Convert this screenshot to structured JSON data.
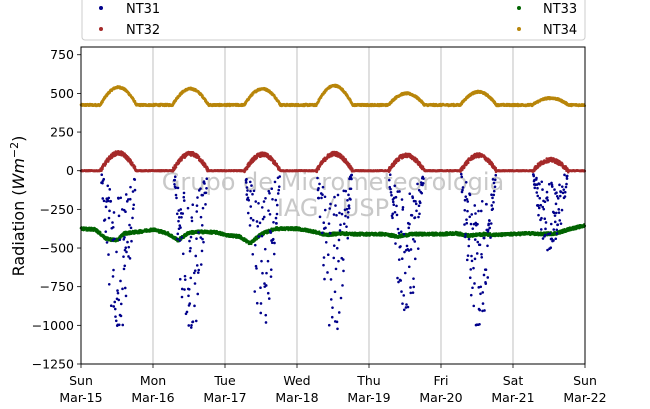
{
  "chart_data": {
    "type": "scatter",
    "ylabel": "Radiation (Wm⁻²)",
    "ylabel_parts": {
      "pre": "Radiation (",
      "var": "Wm",
      "sup": "−2",
      "post": ")"
    },
    "watermark": [
      "Grupo de Micrometeorologia",
      "IAG / USP"
    ],
    "x_days": 7,
    "x_ticks": [
      {
        "day": "Sun",
        "date": "Mar-15"
      },
      {
        "day": "Mon",
        "date": "Mar-16"
      },
      {
        "day": "Tue",
        "date": "Mar-17"
      },
      {
        "day": "Wed",
        "date": "Mar-18"
      },
      {
        "day": "Thu",
        "date": "Mar-19"
      },
      {
        "day": "Fri",
        "date": "Mar-20"
      },
      {
        "day": "Sat",
        "date": "Mar-21"
      },
      {
        "day": "Sun",
        "date": "Mar-22"
      }
    ],
    "ylim": [
      -1250,
      800
    ],
    "y_ticks": [
      750,
      500,
      250,
      0,
      -250,
      -500,
      -750,
      -1000,
      -1250
    ],
    "y_tick_labels": [
      "750",
      "500",
      "250",
      "0",
      "−250",
      "−500",
      "−750",
      "−1000",
      "−1250"
    ],
    "grid": "vertical",
    "legend_position": "top",
    "series": [
      {
        "name": "NT31",
        "color": "#00008b",
        "baseline": 0,
        "amp": [
          -1010,
          -1020,
          -990,
          -1030,
          -900,
          -1000,
          -520
        ],
        "noisy": true
      },
      {
        "name": "NT32",
        "color": "#a52a2a",
        "baseline": 0,
        "amp": [
          115,
          110,
          105,
          110,
          100,
          100,
          70
        ],
        "noisy": false
      },
      {
        "name": "NT33",
        "color": "#006400",
        "baseline": -400,
        "amp": [],
        "noisy": false
      },
      {
        "name": "NT34",
        "color": "#b8860b",
        "baseline": 425,
        "amp": [
          540,
          530,
          530,
          550,
          500,
          510,
          470
        ],
        "noisy": false
      }
    ],
    "nt33_profile": [
      [
        0.0,
        -375
      ],
      [
        0.2,
        -380
      ],
      [
        0.35,
        -440
      ],
      [
        0.5,
        -450
      ],
      [
        0.6,
        -405
      ],
      [
        0.8,
        -395
      ],
      [
        1.0,
        -380
      ],
      [
        1.2,
        -405
      ],
      [
        1.35,
        -450
      ],
      [
        1.5,
        -400
      ],
      [
        1.7,
        -395
      ],
      [
        1.9,
        -400
      ],
      [
        2.0,
        -415
      ],
      [
        2.2,
        -425
      ],
      [
        2.35,
        -470
      ],
      [
        2.5,
        -410
      ],
      [
        2.7,
        -375
      ],
      [
        3.0,
        -375
      ],
      [
        3.2,
        -390
      ],
      [
        3.4,
        -415
      ],
      [
        3.6,
        -405
      ],
      [
        3.8,
        -410
      ],
      [
        4.0,
        -410
      ],
      [
        4.2,
        -410
      ],
      [
        4.4,
        -425
      ],
      [
        4.6,
        -410
      ],
      [
        4.8,
        -410
      ],
      [
        5.0,
        -410
      ],
      [
        5.2,
        -405
      ],
      [
        5.4,
        -420
      ],
      [
        5.6,
        -410
      ],
      [
        5.8,
        -415
      ],
      [
        6.0,
        -410
      ],
      [
        6.2,
        -405
      ],
      [
        6.4,
        -410
      ],
      [
        6.6,
        -405
      ],
      [
        6.8,
        -375
      ],
      [
        7.0,
        -355
      ]
    ]
  }
}
